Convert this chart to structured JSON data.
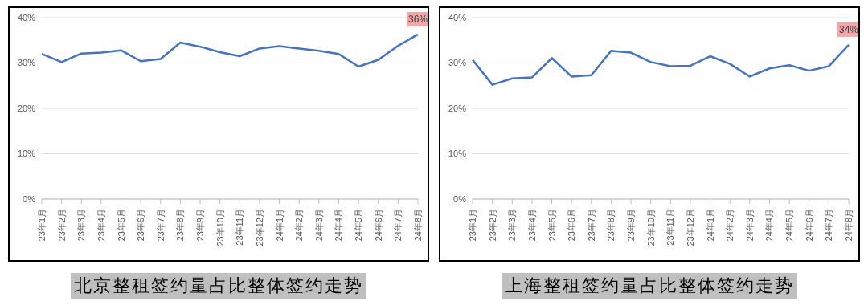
{
  "chart_data": [
    {
      "type": "line",
      "title": "北京整租签约量占比整体签约走势",
      "categories": [
        "23年1月",
        "23年2月",
        "23年3月",
        "23年4月",
        "23年5月",
        "23年6月",
        "23年7月",
        "23年8月",
        "23年9月",
        "23年10月",
        "23年11月",
        "23年12月",
        "24年1月",
        "24年2月",
        "24年3月",
        "24年4月",
        "24年5月",
        "24年6月",
        "24年7月",
        "24年8月"
      ],
      "series": [
        {
          "color": "#4472c4",
          "values": [
            32.0,
            30.2,
            32.1,
            32.3,
            32.8,
            30.4,
            30.9,
            34.5,
            33.6,
            32.4,
            31.5,
            33.2,
            33.7,
            33.2,
            32.7,
            32.0,
            29.2,
            30.7,
            33.8,
            36.3
          ],
          "value_labels": [
            null,
            null,
            null,
            null,
            null,
            null,
            null,
            null,
            null,
            null,
            null,
            null,
            null,
            null,
            null,
            null,
            null,
            null,
            null,
            "36%"
          ]
        }
      ],
      "ylim": [
        0,
        40
      ],
      "yticks": [
        {
          "value": 0,
          "label": "0%"
        },
        {
          "value": 10,
          "label": "10%"
        },
        {
          "value": 20,
          "label": "20%"
        },
        {
          "value": 30,
          "label": "30%"
        },
        {
          "value": 40,
          "label": "40%"
        }
      ],
      "grid": "y"
    },
    {
      "type": "line",
      "title": "上海整租签约量占比整体签约走势",
      "categories": [
        "23年1月",
        "23年2月",
        "23年3月",
        "23年4月",
        "23年5月",
        "23年6月",
        "23年7月",
        "23年8月",
        "23年9月",
        "23年10月",
        "23年11月",
        "23年12月",
        "24年1月",
        "24年2月",
        "24年3月",
        "24年4月",
        "24年5月",
        "24年6月",
        "24年7月",
        "24年8月"
      ],
      "series": [
        {
          "color": "#4472c4",
          "values": [
            30.7,
            25.2,
            26.6,
            26.8,
            31.1,
            27.0,
            27.3,
            32.7,
            32.3,
            30.2,
            29.3,
            29.4,
            31.5,
            29.8,
            27.0,
            28.8,
            29.5,
            28.3,
            29.3,
            34.0
          ],
          "value_labels": [
            null,
            null,
            null,
            null,
            null,
            null,
            null,
            null,
            null,
            null,
            null,
            null,
            null,
            null,
            null,
            null,
            null,
            null,
            null,
            "34%"
          ]
        }
      ],
      "ylim": [
        0,
        40
      ],
      "yticks": [
        {
          "value": 0,
          "label": "0%"
        },
        {
          "value": 10,
          "label": "10%"
        },
        {
          "value": 20,
          "label": "20%"
        },
        {
          "value": 30,
          "label": "30%"
        },
        {
          "value": 40,
          "label": "40%"
        }
      ],
      "grid": "y"
    }
  ]
}
